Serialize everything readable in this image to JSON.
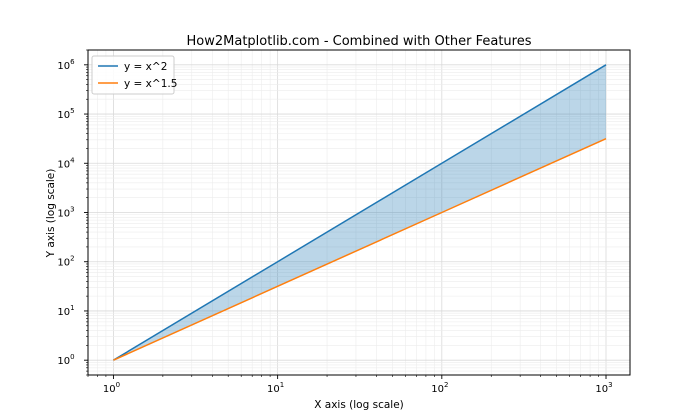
{
  "chart_data": {
    "type": "line",
    "title": "How2Matplotlib.com - Combined with Other Features",
    "xlabel": "X axis (log scale)",
    "ylabel": "Y axis (log scale)",
    "xscale": "log",
    "yscale": "log",
    "xlim": [
      0.7,
      1400
    ],
    "ylim": [
      0.5,
      2000000
    ],
    "grid": "both major and minor",
    "legend_position": "top-left",
    "x": [
      1,
      10,
      100,
      1000
    ],
    "x_tick_labels": [
      {
        "base": "10",
        "exp": "0"
      },
      {
        "base": "10",
        "exp": "1"
      },
      {
        "base": "10",
        "exp": "2"
      },
      {
        "base": "10",
        "exp": "3"
      }
    ],
    "y_tick_labels": [
      {
        "base": "10",
        "exp": "0"
      },
      {
        "base": "10",
        "exp": "1"
      },
      {
        "base": "10",
        "exp": "2"
      },
      {
        "base": "10",
        "exp": "3"
      },
      {
        "base": "10",
        "exp": "4"
      },
      {
        "base": "10",
        "exp": "5"
      },
      {
        "base": "10",
        "exp": "6"
      }
    ],
    "series": [
      {
        "name": "y = x^2",
        "color": "#1f77b4",
        "values": [
          1,
          100,
          10000,
          1000000
        ]
      },
      {
        "name": "y = x^1.5",
        "color": "#ff7f0e",
        "values": [
          1,
          31.62,
          1000,
          31622.78
        ]
      }
    ],
    "fill_between": {
      "color": "#1f77b4",
      "alpha": 0.3
    }
  }
}
